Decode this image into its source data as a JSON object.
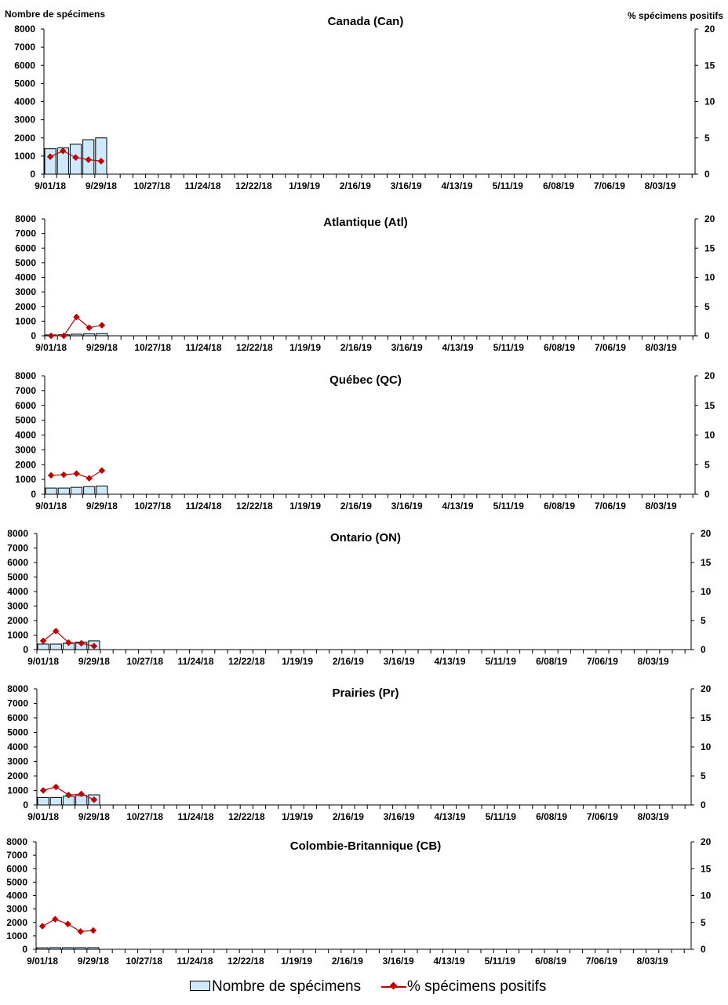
{
  "legend": {
    "bar_label": "Nombre de spécimens",
    "line_label": "% spécimens positifs"
  },
  "colors": {
    "bar_fill": "#cde9fb",
    "bar_stroke": "#000000",
    "line": "#c00000",
    "axis": "#000000"
  },
  "chart_data": [
    {
      "type": "bar",
      "title": "Canada (Can)",
      "ylabel": "Nombre de spécimens",
      "y2label": "% spécimens positifs",
      "ylim": [
        0,
        8000
      ],
      "y2lim": [
        0,
        20
      ],
      "yticks": [
        0,
        1000,
        2000,
        3000,
        4000,
        5000,
        6000,
        7000,
        8000
      ],
      "y2ticks": [
        0,
        5,
        10,
        15,
        20
      ],
      "x_tick_labels": [
        "9/01/18",
        "9/29/18",
        "10/27/18",
        "11/24/18",
        "12/22/18",
        "1/19/19",
        "2/16/19",
        "3/16/19",
        "4/13/19",
        "5/11/19",
        "6/08/19",
        "7/06/19",
        "8/03/19"
      ],
      "series": [
        {
          "name": "Nombre de spécimens",
          "type": "bar",
          "values": [
            1400,
            1450,
            1650,
            1900,
            2000
          ]
        },
        {
          "name": "% spécimens positifs",
          "type": "line",
          "values": [
            2.4,
            3.2,
            2.3,
            2.0,
            1.8
          ]
        }
      ]
    },
    {
      "type": "bar",
      "title": "Atlantique (Atl)",
      "ylim": [
        0,
        8000
      ],
      "y2lim": [
        0,
        20
      ],
      "yticks": [
        0,
        1000,
        2000,
        3000,
        4000,
        5000,
        6000,
        7000,
        8000
      ],
      "y2ticks": [
        0,
        5,
        10,
        15,
        20
      ],
      "x_tick_labels": [
        "9/01/18",
        "9/29/18",
        "10/27/18",
        "11/24/18",
        "12/22/18",
        "1/19/19",
        "2/16/19",
        "3/16/19",
        "4/13/19",
        "5/11/19",
        "6/08/19",
        "7/06/19",
        "8/03/19"
      ],
      "series": [
        {
          "name": "Nombre de spécimens",
          "type": "bar",
          "values": [
            60,
            70,
            110,
            130,
            150
          ]
        },
        {
          "name": "% spécimens positifs",
          "type": "line",
          "values": [
            0.0,
            0.0,
            3.2,
            1.4,
            1.8
          ]
        }
      ]
    },
    {
      "type": "bar",
      "title": "Québec (QC)",
      "ylim": [
        0,
        8000
      ],
      "y2lim": [
        0,
        20
      ],
      "yticks": [
        0,
        1000,
        2000,
        3000,
        4000,
        5000,
        6000,
        7000,
        8000
      ],
      "y2ticks": [
        0,
        5,
        10,
        15,
        20
      ],
      "x_tick_labels": [
        "9/01/18",
        "9/29/18",
        "10/27/18",
        "11/24/18",
        "12/22/18",
        "1/19/19",
        "2/16/19",
        "3/16/19",
        "4/13/19",
        "5/11/19",
        "6/08/19",
        "7/06/19",
        "8/03/19"
      ],
      "series": [
        {
          "name": "Nombre de spécimens",
          "type": "bar",
          "values": [
            420,
            420,
            470,
            520,
            560
          ]
        },
        {
          "name": "% spécimens positifs",
          "type": "line",
          "values": [
            3.2,
            3.3,
            3.5,
            2.7,
            4.0
          ]
        }
      ]
    },
    {
      "type": "bar",
      "title": "Ontario (ON)",
      "ylim": [
        0,
        8000
      ],
      "y2lim": [
        0,
        20
      ],
      "yticks": [
        0,
        1000,
        2000,
        3000,
        4000,
        5000,
        6000,
        7000,
        8000
      ],
      "y2ticks": [
        0,
        5,
        10,
        15,
        20
      ],
      "x_tick_labels": [
        "9/01/18",
        "9/29/18",
        "10/27/18",
        "11/24/18",
        "12/22/18",
        "1/19/19",
        "2/16/19",
        "3/16/19",
        "4/13/19",
        "5/11/19",
        "6/08/19",
        "7/06/19",
        "8/03/19"
      ],
      "series": [
        {
          "name": "Nombre de spécimens",
          "type": "bar",
          "values": [
            380,
            380,
            430,
            520,
            600
          ]
        },
        {
          "name": "% spécimens positifs",
          "type": "line",
          "values": [
            1.5,
            3.2,
            1.2,
            1.1,
            0.6
          ]
        }
      ]
    },
    {
      "type": "bar",
      "title": "Prairies (Pr)",
      "ylim": [
        0,
        8000
      ],
      "y2lim": [
        0,
        20
      ],
      "yticks": [
        0,
        1000,
        2000,
        3000,
        4000,
        5000,
        6000,
        7000,
        8000
      ],
      "y2ticks": [
        0,
        5,
        10,
        15,
        20
      ],
      "x_tick_labels": [
        "9/01/18",
        "9/29/18",
        "10/27/18",
        "11/24/18",
        "12/22/18",
        "1/19/19",
        "2/16/19",
        "3/16/19",
        "4/13/19",
        "5/11/19",
        "6/08/19",
        "7/06/19",
        "8/03/19"
      ],
      "series": [
        {
          "name": "Nombre de spécimens",
          "type": "bar",
          "values": [
            520,
            520,
            600,
            650,
            700
          ]
        },
        {
          "name": "% spécimens positifs",
          "type": "line",
          "values": [
            2.5,
            3.1,
            1.7,
            1.9,
            0.9
          ]
        }
      ]
    },
    {
      "type": "bar",
      "title": "Colombie-Britannique (CB)",
      "ylim": [
        0,
        8000
      ],
      "y2lim": [
        0,
        20
      ],
      "yticks": [
        0,
        1000,
        2000,
        3000,
        4000,
        5000,
        6000,
        7000,
        8000
      ],
      "y2ticks": [
        0,
        5,
        10,
        15,
        20
      ],
      "x_tick_labels": [
        "9/01/18",
        "9/29/18",
        "10/27/18",
        "11/24/18",
        "12/22/18",
        "1/19/19",
        "2/16/19",
        "3/16/19",
        "4/13/19",
        "5/11/19",
        "6/08/19",
        "7/06/19",
        "8/03/19"
      ],
      "series": [
        {
          "name": "Nombre de spécimens",
          "type": "bar",
          "values": [
            110,
            120,
            120,
            120,
            120
          ]
        },
        {
          "name": "% spécimens positifs",
          "type": "line",
          "values": [
            4.3,
            5.6,
            4.7,
            3.3,
            3.5
          ]
        }
      ]
    }
  ]
}
